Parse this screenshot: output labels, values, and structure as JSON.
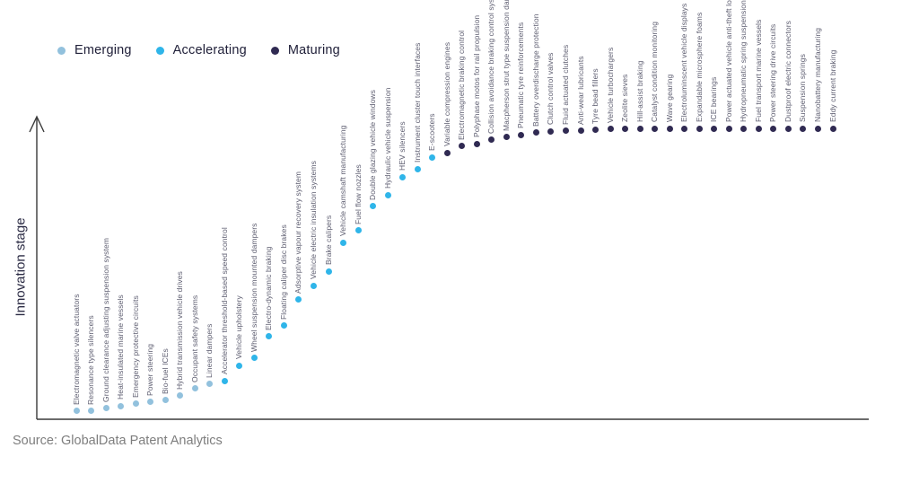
{
  "legend": {
    "items": [
      {
        "label": "Emerging",
        "color": "#92C1DD"
      },
      {
        "label": "Accelerating",
        "color": "#2FB5E9"
      },
      {
        "label": "Maturing",
        "color": "#302A52"
      }
    ]
  },
  "y_axis": {
    "label": "Innovation stage"
  },
  "source": {
    "text": "Source: GlobalData Patent Analytics"
  },
  "chart_data": {
    "type": "scatter",
    "title": "",
    "xlabel": "",
    "ylabel": "Innovation stage",
    "grid": false,
    "legend_position": "top-left",
    "y_axis_numeric": false,
    "note": "Qualitative S-curve; level is normalized 0-1 innovation stage read from dot height",
    "stages": {
      "Emerging": "#92C1DD",
      "Accelerating": "#2FB5E9",
      "Maturing": "#302A52"
    },
    "points": [
      {
        "label": "Electromagnetic valve actuators",
        "stage": "Emerging",
        "level": 0.022
      },
      {
        "label": "Resonance type silencers",
        "stage": "Emerging",
        "level": 0.022
      },
      {
        "label": "Ground clearance adjusting suspension system",
        "stage": "Emerging",
        "level": 0.032
      },
      {
        "label": "Heat-insulated marine vessels",
        "stage": "Emerging",
        "level": 0.04
      },
      {
        "label": "Emergency protective circuits",
        "stage": "Emerging",
        "level": 0.047
      },
      {
        "label": "Power steering",
        "stage": "Emerging",
        "level": 0.053
      },
      {
        "label": "Bio-fuel ICEs",
        "stage": "Emerging",
        "level": 0.06
      },
      {
        "label": "Hybrid transmission vehicle drives",
        "stage": "Emerging",
        "level": 0.075
      },
      {
        "label": "Occupant safety systems",
        "stage": "Emerging",
        "level": 0.1
      },
      {
        "label": "Linear dampers",
        "stage": "Emerging",
        "level": 0.115
      },
      {
        "label": "Accelerator threshold-based speed control",
        "stage": "Accelerating",
        "level": 0.127
      },
      {
        "label": "Vehicle upholstery",
        "stage": "Accelerating",
        "level": 0.18
      },
      {
        "label": "Wheel suspension mounted dampers",
        "stage": "Accelerating",
        "level": 0.205
      },
      {
        "label": "Electro-dynamic braking",
        "stage": "Accelerating",
        "level": 0.28
      },
      {
        "label": "Floating caliper disc brakes",
        "stage": "Accelerating",
        "level": 0.317
      },
      {
        "label": "Adsorptive vapour recovery system",
        "stage": "Accelerating",
        "level": 0.407
      },
      {
        "label": "Vehicle electric insulation systems",
        "stage": "Accelerating",
        "level": 0.456
      },
      {
        "label": "Brake calipers",
        "stage": "Accelerating",
        "level": 0.506
      },
      {
        "label": "Vehicle camshaft manufacturing",
        "stage": "Accelerating",
        "level": 0.605
      },
      {
        "label": "Fuel flow nozzles",
        "stage": "Accelerating",
        "level": 0.646
      },
      {
        "label": "Double glazing vehicle windows",
        "stage": "Accelerating",
        "level": 0.73
      },
      {
        "label": "Hydraulic vehicle suspension",
        "stage": "Accelerating",
        "level": 0.77
      },
      {
        "label": "HEV silencers",
        "stage": "Accelerating",
        "level": 0.832
      },
      {
        "label": "Instrument cluster touch interfaces",
        "stage": "Accelerating",
        "level": 0.86
      },
      {
        "label": "E-scooters",
        "stage": "Accelerating",
        "level": 0.9
      },
      {
        "label": "Variable compression engines",
        "stage": "Maturing",
        "level": 0.915
      },
      {
        "label": "Electromagnetic braking control",
        "stage": "Maturing",
        "level": 0.938
      },
      {
        "label": "Polyphase motos for rail propulsion",
        "stage": "Maturing",
        "level": 0.947
      },
      {
        "label": "Collision avoidance braking control system",
        "stage": "Maturing",
        "level": 0.96
      },
      {
        "label": "Macpherson strut type suspension damper",
        "stage": "Maturing",
        "level": 0.969
      },
      {
        "label": "Pneumatic tyre reinforcements",
        "stage": "Maturing",
        "level": 0.978
      },
      {
        "label": "Battery overdischarge protection",
        "stage": "Maturing",
        "level": 0.985
      },
      {
        "label": "Clutch control valves",
        "stage": "Maturing",
        "level": 0.99
      },
      {
        "label": "Fluid actuated clutches",
        "stage": "Maturing",
        "level": 0.991
      },
      {
        "label": "Anti-wear lubricants",
        "stage": "Maturing",
        "level": 0.991
      },
      {
        "label": "Tyre bead fillers",
        "stage": "Maturing",
        "level": 0.995
      },
      {
        "label": "Vehicle turbochargers",
        "stage": "Maturing",
        "level": 0.998
      },
      {
        "label": "Zeolite sieves",
        "stage": "Maturing",
        "level": 1.0
      },
      {
        "label": "Hill-assist braking",
        "stage": "Maturing",
        "level": 1.0
      },
      {
        "label": "Catalyst condition monitoring",
        "stage": "Maturing",
        "level": 1.0
      },
      {
        "label": "Wave gearing",
        "stage": "Maturing",
        "level": 1.0
      },
      {
        "label": "Electroluminscent vehicle displays",
        "stage": "Maturing",
        "level": 1.0
      },
      {
        "label": "Expandable microsphere foams",
        "stage": "Maturing",
        "level": 1.0
      },
      {
        "label": "ICE bearings",
        "stage": "Maturing",
        "level": 1.0
      },
      {
        "label": "Power actuated vehicle anti-theft locks",
        "stage": "Maturing",
        "level": 1.0
      },
      {
        "label": "Hydropneumatic spring suspensions",
        "stage": "Maturing",
        "level": 1.0
      },
      {
        "label": "Fuel transport marine vessels",
        "stage": "Maturing",
        "level": 1.0
      },
      {
        "label": "Power steering drive circuits",
        "stage": "Maturing",
        "level": 1.0
      },
      {
        "label": "Dustproof electric connectors",
        "stage": "Maturing",
        "level": 1.0
      },
      {
        "label": "Suspension springs",
        "stage": "Maturing",
        "level": 1.0
      },
      {
        "label": "Nanobattery manufacturing",
        "stage": "Maturing",
        "level": 1.0
      },
      {
        "label": "Eddy current braking",
        "stage": "Maturing",
        "level": 1.0
      }
    ]
  }
}
